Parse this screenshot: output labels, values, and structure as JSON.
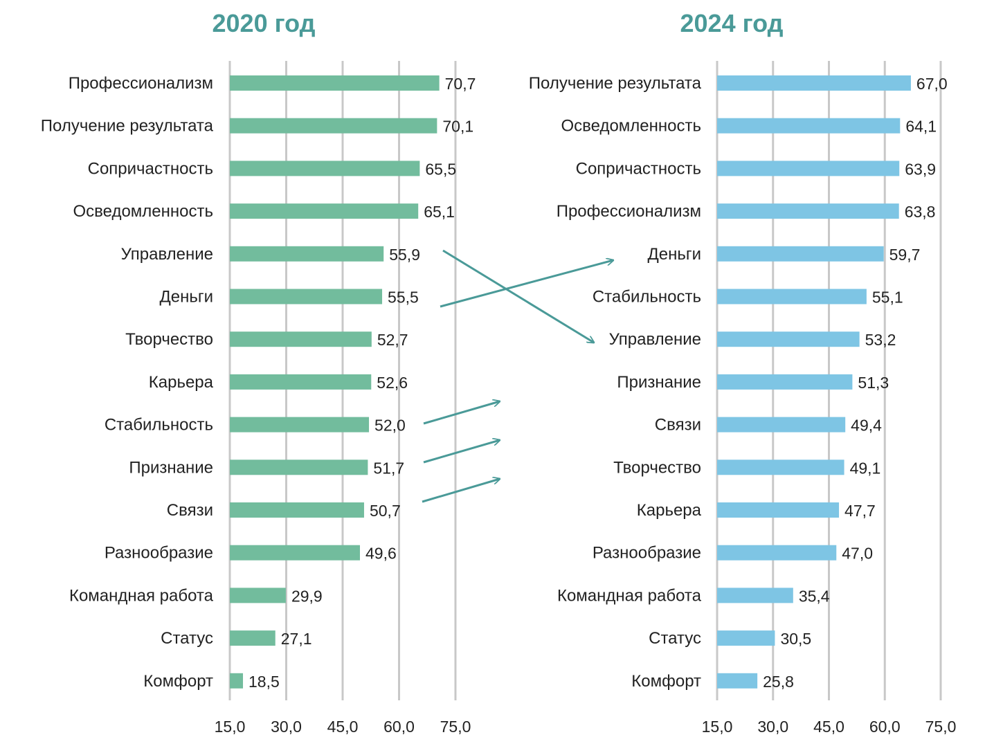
{
  "chart_data": [
    {
      "type": "bar",
      "orientation": "horizontal",
      "title": "2020 год",
      "color": "#72bc9d",
      "xlim": [
        15,
        75
      ],
      "xticks": [
        15,
        30,
        45,
        60,
        75
      ],
      "xtick_labels": [
        "15,0",
        "30,0",
        "45,0",
        "60,0",
        "75,0"
      ],
      "grid": "vertical",
      "categories": [
        "Профессионализм",
        "Получение результата",
        "Сопричастность",
        "Осведомленность",
        "Управление",
        "Деньги",
        "Творчество",
        "Карьера",
        "Стабильность",
        "Признание",
        "Связи",
        "Разнообразие",
        "Командная работа",
        "Статус",
        "Комфорт"
      ],
      "values": [
        70.7,
        70.1,
        65.5,
        65.1,
        55.9,
        55.5,
        52.7,
        52.6,
        52.0,
        51.7,
        50.7,
        49.6,
        29.9,
        27.1,
        18.5
      ],
      "value_labels": [
        "70,7",
        "70,1",
        "65,5",
        "65,1",
        "55,9",
        "55,5",
        "52,7",
        "52,6",
        "52,0",
        "51,7",
        "50,7",
        "49,6",
        "29,9",
        "27,1",
        "18,5"
      ]
    },
    {
      "type": "bar",
      "orientation": "horizontal",
      "title": "2024 год",
      "color": "#7ec5e4",
      "xlim": [
        15,
        75
      ],
      "xticks": [
        15,
        30,
        45,
        60,
        75
      ],
      "xtick_labels": [
        "15,0",
        "30,0",
        "45,0",
        "60,0",
        "75,0"
      ],
      "grid": "vertical",
      "categories": [
        "Получение результата",
        "Осведомленность",
        "Сопричастность",
        "Профессионализм",
        "Деньги",
        "Стабильность",
        "Управление",
        "Признание",
        "Связи",
        "Творчество",
        "Карьера",
        "Разнообразие",
        "Командная работа",
        "Статус",
        "Комфорт"
      ],
      "values": [
        67.0,
        64.1,
        63.9,
        63.8,
        59.7,
        55.1,
        53.2,
        51.3,
        49.4,
        49.1,
        47.7,
        47.0,
        35.4,
        30.5,
        25.8
      ],
      "value_labels": [
        "67,0",
        "64,1",
        "63,9",
        "63,8",
        "59,7",
        "55,1",
        "53,2",
        "51,3",
        "49,4",
        "49,1",
        "47,7",
        "47,0",
        "35,4",
        "30,5",
        "25,8"
      ]
    }
  ],
  "annotations": {
    "arrow_color": "#4a9a98",
    "arrows": [
      {
        "from_category": "Управление",
        "to_category": "Управление",
        "direction": "down"
      },
      {
        "from_category": "Деньги",
        "to_category": "Деньги",
        "direction": "up"
      },
      {
        "from_category": "Стабильность",
        "direction": "up"
      },
      {
        "from_category": "Признание",
        "direction": "up"
      },
      {
        "from_category": "Связи",
        "direction": "up"
      }
    ]
  },
  "colors": {
    "title": "#4a9a98",
    "text": "#222222",
    "grid": "#c8c8c8"
  }
}
